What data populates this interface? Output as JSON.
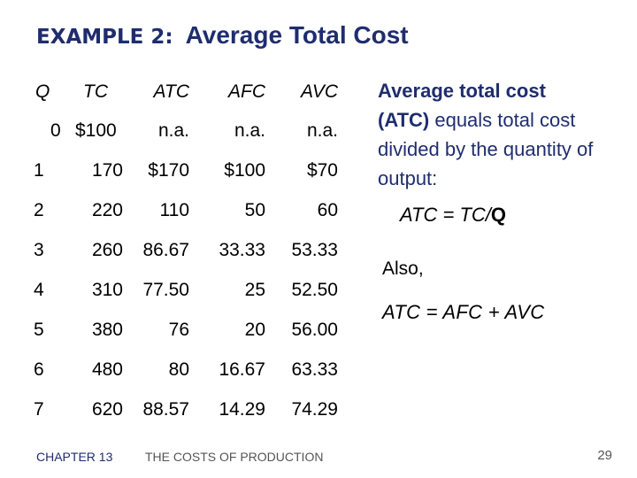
{
  "title": {
    "prefix": "EXAMPLE 2:",
    "main": "Average Total Cost"
  },
  "table": {
    "headers": [
      "Q",
      "TC",
      "ATC",
      "AFC",
      "AVC"
    ],
    "rows": [
      [
        "0",
        "$100",
        "n.a.",
        "n.a.",
        "n.a."
      ],
      [
        "1",
        "170",
        "$170",
        "$100",
        "$70"
      ],
      [
        "2",
        "220",
        "110",
        "50",
        "60"
      ],
      [
        "3",
        "260",
        "86.67",
        "33.33",
        "53.33"
      ],
      [
        "4",
        "310",
        "77.50",
        "25",
        "52.50"
      ],
      [
        "5",
        "380",
        "76",
        "20",
        "56.00"
      ],
      [
        "6",
        "480",
        "80",
        "16.67",
        "63.33"
      ],
      [
        "7",
        "620",
        "88.57",
        "14.29",
        "74.29"
      ]
    ]
  },
  "explanation": {
    "line1": "Average total cost",
    "atc_open": "(ATC)",
    "rest": " equals total cost divided by the quantity of output:"
  },
  "formula1": {
    "left": "ATC = TC/",
    "q": "Q"
  },
  "also": "Also,",
  "formula2": "ATC = AFC + AVC",
  "footer": {
    "chapter": "CHAPTER 13",
    "topic": "THE COSTS OF PRODUCTION",
    "page": "29"
  },
  "colors": {
    "title": "#1f2d6e",
    "body": "#000000"
  }
}
